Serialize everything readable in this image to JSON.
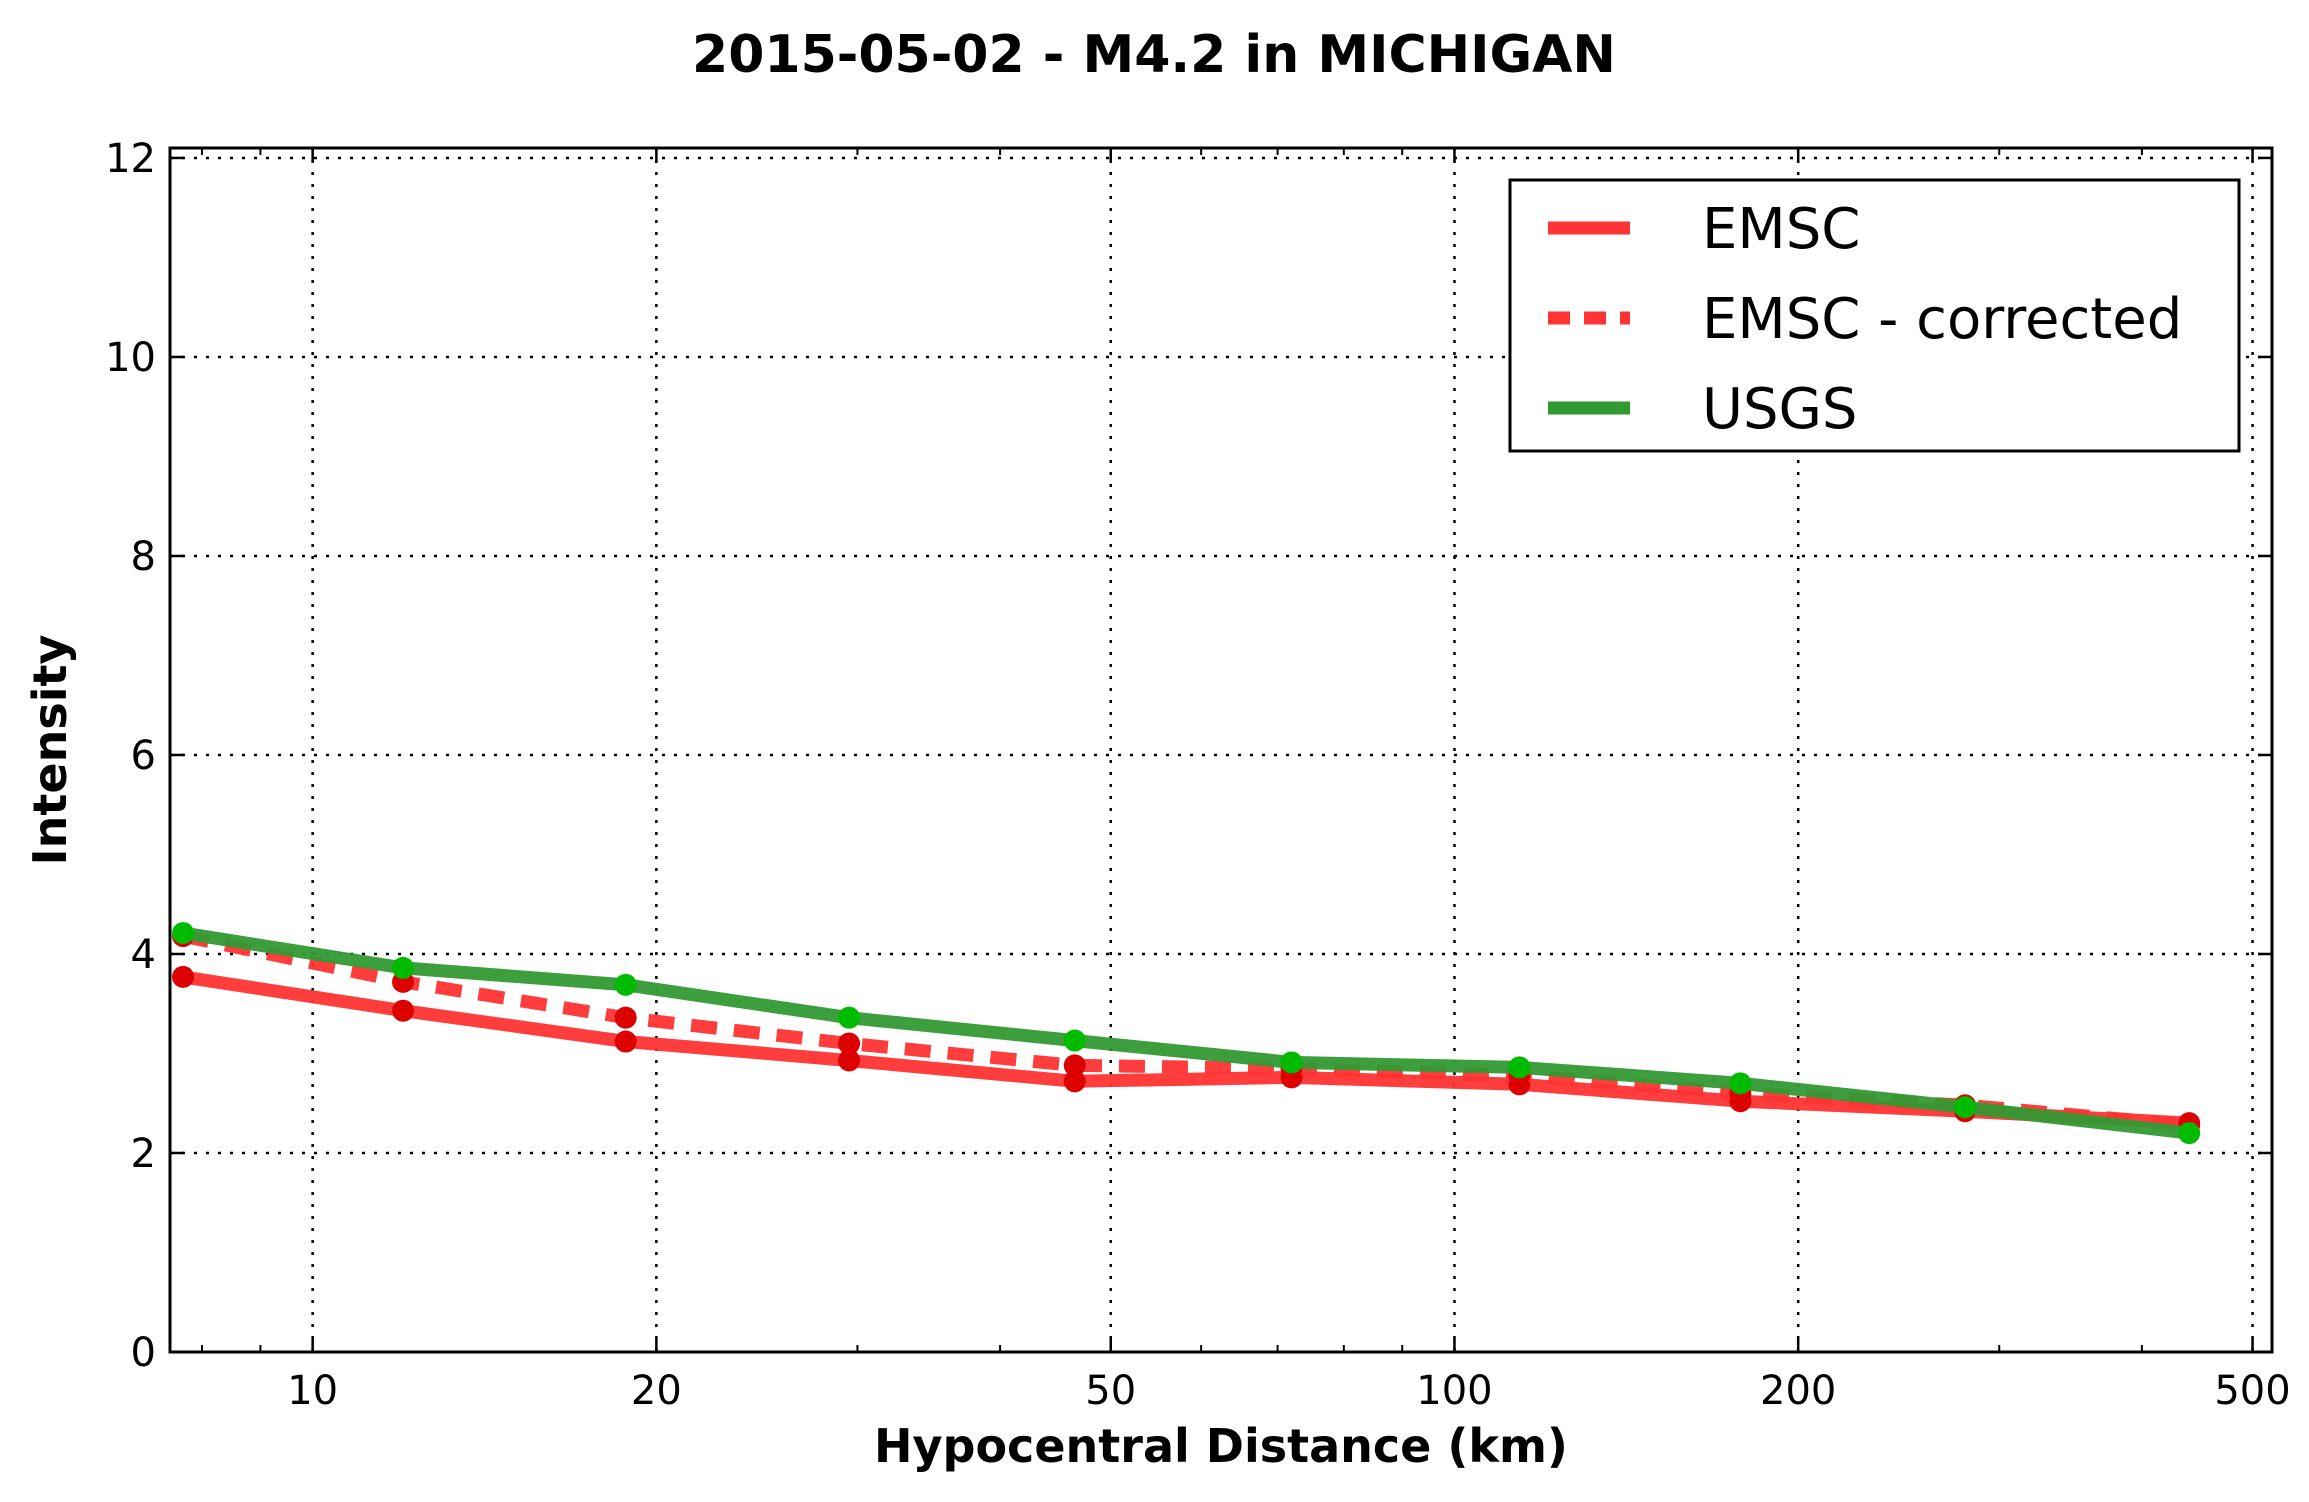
{
  "chart_data": {
    "type": "line",
    "title": "2015-05-02 - M4.2 in MICHIGAN",
    "xlabel": "Hypocentral Distance (km)",
    "ylabel": "Intensity",
    "xscale": "log",
    "xlim": [
      7.5,
      520
    ],
    "ylim": [
      0,
      12.1
    ],
    "xticks": [
      10,
      20,
      50,
      100,
      200,
      500
    ],
    "xtick_labels": [
      "10",
      "20",
      "50",
      "100",
      "200",
      "500"
    ],
    "yticks": [
      0,
      2,
      4,
      6,
      8,
      10,
      12
    ],
    "ytick_labels": [
      "0",
      "2",
      "4",
      "6",
      "8",
      "10",
      "12"
    ],
    "grid": true,
    "legend_position": "top-right",
    "series": [
      {
        "name": "EMSC",
        "color": "#ff3333",
        "marker_color": "#dd0000",
        "style": "solid",
        "x": [
          7.7,
          12,
          18.8,
          29.5,
          46.5,
          72,
          114,
          178,
          280,
          440
        ],
        "y": [
          3.77,
          3.43,
          3.12,
          2.93,
          2.72,
          2.76,
          2.69,
          2.52,
          2.42,
          2.3
        ]
      },
      {
        "name": "EMSC - corrected",
        "color": "#ff3333",
        "marker_color": "#dd0000",
        "style": "dashed",
        "x": [
          7.7,
          12,
          18.8,
          29.5,
          46.5,
          72,
          114,
          178,
          280,
          440
        ],
        "y": [
          4.18,
          3.72,
          3.36,
          3.1,
          2.88,
          2.85,
          2.78,
          2.6,
          2.48,
          2.28
        ]
      },
      {
        "name": "USGS",
        "color": "#339933",
        "marker_color": "#00bb00",
        "style": "solid",
        "x": [
          7.7,
          12,
          18.8,
          29.5,
          46.5,
          72,
          114,
          178,
          280,
          440
        ],
        "y": [
          4.21,
          3.86,
          3.69,
          3.36,
          3.13,
          2.91,
          2.86,
          2.7,
          2.46,
          2.2
        ]
      }
    ]
  }
}
